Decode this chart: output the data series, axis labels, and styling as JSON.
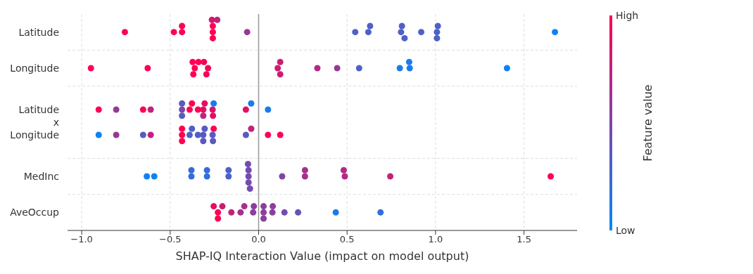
{
  "chart_data": {
    "type": "scatter",
    "orientation": "horizontal",
    "xlabel": "SHAP-IQ Interaction Value (impact on model output)",
    "clabel": "Feature value",
    "categories": [
      "Latitude",
      "Longitude",
      "Latitude\nx\nLongitude",
      "MedInc",
      "AveOccup"
    ],
    "xlim": [
      -1.08,
      1.8
    ],
    "xticks": [
      {
        "value": -1.0,
        "label": "−1.0"
      },
      {
        "value": -0.5,
        "label": "−0.5"
      },
      {
        "value": 0.0,
        "label": "0.0"
      },
      {
        "value": 0.5,
        "label": "0.5"
      },
      {
        "value": 1.0,
        "label": "1.0"
      },
      {
        "value": 1.5,
        "label": "1.5"
      }
    ],
    "clim": [
      0,
      1
    ],
    "cticks": [
      {
        "value": 0,
        "label": "Low"
      },
      {
        "value": 1,
        "label": "High"
      }
    ],
    "grid": true,
    "ref_lines": [
      {
        "axis": "x",
        "value": 0,
        "color": "#999999"
      }
    ],
    "series": [
      {
        "x": [
          "Latitude",
          "Latitude",
          "Latitude",
          "Latitude",
          "Latitude",
          "Latitude",
          "Latitude",
          "Latitude",
          "Latitude",
          "Latitude",
          "Latitude",
          "Latitude",
          "Latitude",
          "Latitude",
          "Latitude",
          "Latitude",
          "Latitude",
          "Latitude",
          "Latitude",
          "Latitude",
          "Latitude"
        ],
        "values": [
          -0.756,
          -0.479,
          -0.433,
          -0.259,
          -0.259,
          -0.259,
          -0.264,
          -0.234,
          -0.065,
          0.546,
          0.62,
          0.63,
          0.805,
          0.81,
          0.825,
          0.919,
          1.008,
          1.013,
          1.008,
          1.675,
          -0.433
        ],
        "colors": [
          "#ff0052",
          "#ff0052",
          "#ff0052",
          "#ff0052",
          "#ff0052",
          "#ff0052",
          "#d9156b",
          "#bf237c",
          "#993796",
          "#4d61c8",
          "#4d61c8",
          "#4d61c8",
          "#4d61c8",
          "#4d61c8",
          "#4d61c8",
          "#4d61c8",
          "#4d61c8",
          "#4d61c8",
          "#4d61c8",
          "#0d83f3",
          "#ff0052"
        ]
      },
      {
        "x": [
          "Longitude",
          "Longitude",
          "Longitude",
          "Longitude",
          "Longitude",
          "Longitude",
          "Longitude",
          "Longitude",
          "Longitude",
          "Longitude",
          "Longitude",
          "Longitude",
          "Longitude",
          "Longitude",
          "Longitude",
          "Longitude",
          "Longitude",
          "Longitude",
          "Longitude"
        ],
        "values": [
          -0.948,
          -0.627,
          -0.361,
          -0.286,
          -0.373,
          -0.369,
          -0.34,
          -0.309,
          -0.295,
          0.108,
          0.122,
          0.122,
          0.332,
          0.444,
          0.568,
          0.798,
          0.854,
          0.851,
          1.404
        ],
        "colors": [
          "#ff0052",
          "#ff0052",
          "#ff0052",
          "#f2075a",
          "#ff0052",
          "#ff0052",
          "#ff0052",
          "#f2075a",
          "#f2075a",
          "#cc1c74",
          "#cc1c74",
          "#cc1c74",
          "#b32985",
          "#993796",
          "#4d61c8",
          "#1a7cea",
          "#1a7cea",
          "#1a7cea",
          "#0d83f3"
        ]
      },
      {
        "x": [
          "Latitude\nx\nLongitude",
          "Latitude\nx\nLongitude",
          "Latitude\nx\nLongitude",
          "Latitude\nx\nLongitude",
          "Latitude\nx\nLongitude",
          "Latitude\nx\nLongitude",
          "Latitude\nx\nLongitude",
          "Latitude\nx\nLongitude",
          "Latitude\nx\nLongitude",
          "Latitude\nx\nLongitude",
          "Latitude\nx\nLongitude",
          "Latitude\nx\nLongitude",
          "Latitude\nx\nLongitude",
          "Latitude\nx\nLongitude",
          "Latitude\nx\nLongitude",
          "Latitude\nx\nLongitude",
          "Latitude\nx\nLongitude",
          "Latitude\nx\nLongitude",
          "Latitude\nx\nLongitude"
        ],
        "values": [
          -0.904,
          -0.805,
          -0.653,
          -0.61,
          -0.433,
          -0.313,
          -0.26,
          -0.433,
          -0.39,
          -0.377,
          -0.343,
          -0.305,
          -0.254,
          -0.433,
          -0.313,
          -0.258,
          -0.072,
          -0.042,
          0.053
        ],
        "colors": [
          "#ff0052",
          "#993796",
          "#ff0052",
          "#bf237c",
          "#8045a7",
          "#e60e63",
          "#d9156b",
          "#595ac0",
          "#ff0052",
          "#ff0052",
          "#ff0052",
          "#e60e63",
          "#1a7cea",
          "#595ac0",
          "#bf237c",
          "#e60e63",
          "#e60e63",
          "#1a7cea",
          "#1a7cea"
        ]
      },
      {
        "x": [
          "Latitude\nx\nLongitude",
          "Latitude\nx\nLongitude",
          "Latitude\nx\nLongitude",
          "Latitude\nx\nLongitude",
          "Latitude\nx\nLongitude",
          "Latitude\nx\nLongitude",
          "Latitude\nx\nLongitude",
          "Latitude\nx\nLongitude",
          "Latitude\nx\nLongitude",
          "Latitude\nx\nLongitude",
          "Latitude\nx\nLongitude",
          "Latitude\nx\nLongitude",
          "Latitude\nx\nLongitude",
          "Latitude\nx\nLongitude",
          "Latitude\nx\nLongitude",
          "Latitude\nx\nLongitude",
          "Latitude\nx\nLongitude",
          "Latitude\nx\nLongitude",
          "Latitude\nx\nLongitude",
          "Latitude\nx\nLongitude"
        ],
        "values": [
          -0.904,
          -0.805,
          -0.653,
          -0.61,
          -0.433,
          -0.313,
          -0.26,
          -0.433,
          -0.39,
          -0.377,
          -0.343,
          -0.305,
          -0.254,
          -0.433,
          -0.313,
          -0.258,
          -0.072,
          -0.042,
          0.053,
          0.122
        ],
        "colors": [
          "#0d83f3",
          "#993796",
          "#595ac0",
          "#bf237c",
          "#ff0052",
          "#595ac0",
          "#595ac0",
          "#ff0052",
          "#4d61c8",
          "#4d61c8",
          "#4d61c8",
          "#595ac0",
          "#ff0052",
          "#ff0052",
          "#595ac0",
          "#595ac0",
          "#595ac0",
          "#bf237c",
          "#ff0052",
          "#ff0052"
        ]
      },
      {
        "x": [
          "MedInc",
          "MedInc",
          "MedInc",
          "MedInc",
          "MedInc",
          "MedInc",
          "MedInc",
          "MedInc",
          "MedInc",
          "MedInc",
          "MedInc",
          "MedInc",
          "MedInc",
          "MedInc",
          "MedInc",
          "MedInc",
          "MedInc",
          "MedInc",
          "MedInc",
          "MedInc"
        ],
        "values": [
          -0.632,
          -0.59,
          -0.38,
          -0.38,
          -0.292,
          -0.292,
          -0.17,
          -0.17,
          -0.057,
          -0.057,
          -0.057,
          -0.06,
          -0.049,
          0.133,
          0.262,
          0.262,
          0.487,
          0.481,
          0.744,
          1.651
        ],
        "colors": [
          "#0d83f3",
          "#0d83f3",
          "#336ed9",
          "#336ed9",
          "#336ed9",
          "#336ed9",
          "#4d61c8",
          "#4d61c8",
          "#734caf",
          "#734caf",
          "#734caf",
          "#734caf",
          "#734caf",
          "#8045a7",
          "#a6308d",
          "#a6308d",
          "#b32985",
          "#b32985",
          "#bf237c",
          "#ff0052"
        ]
      },
      {
        "x": [
          "AveOccup",
          "AveOccup",
          "AveOccup",
          "AveOccup",
          "AveOccup",
          "AveOccup",
          "AveOccup",
          "AveOccup",
          "AveOccup",
          "AveOccup",
          "AveOccup",
          "AveOccup",
          "AveOccup",
          "AveOccup",
          "AveOccup",
          "AveOccup",
          "AveOccup",
          "AveOccup"
        ],
        "values": [
          -0.23,
          -0.031,
          0.028,
          0.078,
          -0.254,
          -0.23,
          -0.205,
          -0.154,
          -0.102,
          -0.081,
          -0.027,
          0.028,
          0.08,
          0.028,
          0.146,
          0.223,
          0.436,
          0.689
        ],
        "colors": [
          "#ff0052",
          "#8c3e9e",
          "#8c3e9e",
          "#8c3e9e",
          "#e60e63",
          "#ff0052",
          "#cc1c74",
          "#bf237c",
          "#a6308d",
          "#a6308d",
          "#8c3e9e",
          "#8c3e9e",
          "#8c3e9e",
          "#8c3e9e",
          "#734caf",
          "#6653b7",
          "#1a7cea",
          "#336ed9"
        ]
      }
    ]
  }
}
